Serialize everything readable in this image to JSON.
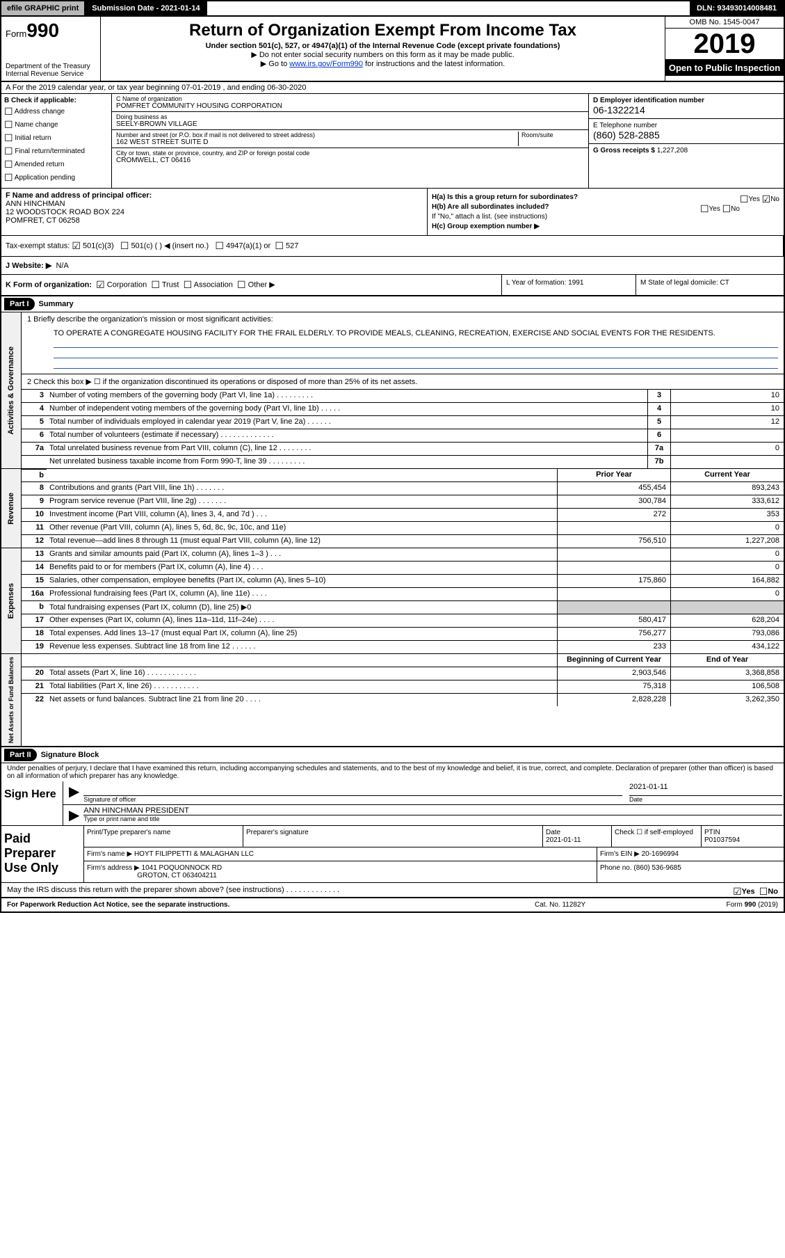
{
  "topbar": {
    "efile": "efile GRAPHIC print",
    "submission": "Submission Date - 2021-01-14",
    "dln": "DLN: 93493014008481"
  },
  "header": {
    "form_pre": "Form",
    "form_num": "990",
    "title": "Return of Organization Exempt From Income Tax",
    "sub1": "Under section 501(c), 527, or 4947(a)(1) of the Internal Revenue Code (except private foundations)",
    "sub2": "▶ Do not enter social security numbers on this form as it may be made public.",
    "sub3_pre": "▶ Go to ",
    "sub3_link": "www.irs.gov/Form990",
    "sub3_post": " for instructions and the latest information.",
    "dept": "Department of the Treasury\nInternal Revenue Service",
    "omb": "OMB No. 1545-0047",
    "year": "2019",
    "open": "Open to Public Inspection"
  },
  "rowA": "A For the 2019 calendar year, or tax year beginning 07-01-2019     , and ending 06-30-2020",
  "colB": {
    "lbl": "B Check if applicable:",
    "items": [
      "Address change",
      "Name change",
      "Initial return",
      "Final return/terminated",
      "Amended return",
      "Application pending"
    ]
  },
  "colC": {
    "name_lbl": "C Name of organization",
    "name": "POMFRET COMMUNITY HOUSING CORPORATION",
    "dba_lbl": "Doing business as",
    "dba": "SEELY-BROWN VILLAGE",
    "addr_lbl": "Number and street (or P.O. box if mail is not delivered to street address)",
    "addr": "162 WEST STREET SUITE D",
    "room_lbl": "Room/suite",
    "city_lbl": "City or town, state or province, country, and ZIP or foreign postal code",
    "city": "CROMWELL, CT  06416"
  },
  "colD": {
    "ein_lbl": "D Employer identification number",
    "ein": "06-1322214",
    "tel_lbl": "E Telephone number",
    "tel": "(860) 528-2885",
    "gross_lbl": "G Gross receipts $",
    "gross": "1,227,208"
  },
  "colF": {
    "lbl": "F  Name and address of principal officer:",
    "name": "ANN HINCHMAN",
    "addr1": "12 WOODSTOCK ROAD BOX 224",
    "addr2": "POMFRET, CT  06258"
  },
  "colH": {
    "ha": "H(a)  Is this a group return for subordinates?",
    "hb": "H(b)  Are all subordinates included?",
    "hb2": "If \"No,\" attach a list. (see instructions)",
    "hc": "H(c)  Group exemption number ▶",
    "yes": "Yes",
    "no": "No"
  },
  "rowI": {
    "lbl": "Tax-exempt status:",
    "opts": [
      "501(c)(3)",
      "501(c) (  ) ◀ (insert no.)",
      "4947(a)(1) or",
      "527"
    ]
  },
  "rowJ": {
    "lbl": "J  Website: ▶",
    "val": "N/A"
  },
  "rowK": {
    "lbl": "K Form of organization:",
    "opts": [
      "Corporation",
      "Trust",
      "Association",
      "Other ▶"
    ],
    "L": "L Year of formation: 1991",
    "M": "M State of legal domicile: CT"
  },
  "part1": {
    "hdr": "Part I",
    "title": "Summary",
    "q1": "1  Briefly describe the organization's mission or most significant activities:",
    "mission": "TO OPERATE A CONGREGATE HOUSING FACILITY FOR THE FRAIL ELDERLY. TO PROVIDE MEALS, CLEANING, RECREATION, EXERCISE AND SOCIAL EVENTS FOR THE RESIDENTS.",
    "q2": "2  Check this box ▶ ☐  if the organization discontinued its operations or disposed of more than 25% of its net assets.",
    "side_act": "Activities & Governance",
    "side_rev": "Revenue",
    "side_exp": "Expenses",
    "side_net": "Net Assets or Fund Balances",
    "rows_a": [
      {
        "n": "3",
        "d": "Number of voting members of the governing body (Part VI, line 1a)   .    .    .    .    .    .    .    .    .",
        "b": "3",
        "v": "10"
      },
      {
        "n": "4",
        "d": "Number of independent voting members of the governing body (Part VI, line 1b)   .    .    .    .    .",
        "b": "4",
        "v": "10"
      },
      {
        "n": "5",
        "d": "Total number of individuals employed in calendar year 2019 (Part V, line 2a)   .    .    .    .    .    .",
        "b": "5",
        "v": "12"
      },
      {
        "n": "6",
        "d": "Total number of volunteers (estimate if necessary)    .    .    .    .    .    .    .    .    .    .    .    .    .",
        "b": "6",
        "v": ""
      },
      {
        "n": "7a",
        "d": "Total unrelated business revenue from Part VIII, column (C), line 12   .    .    .    .    .    .    .    .",
        "b": "7a",
        "v": "0"
      },
      {
        "n": "",
        "d": "Net unrelated business taxable income from Form 990-T, line 39   .    .    .    .    .    .    .    .    .",
        "b": "7b",
        "v": ""
      }
    ],
    "hdr_b": {
      "py": "Prior Year",
      "cy": "Current Year"
    },
    "rows_rev": [
      {
        "n": "8",
        "d": "Contributions and grants (Part VIII, line 1h)    .    .    .    .    .    .    .",
        "py": "455,454",
        "cy": "893,243"
      },
      {
        "n": "9",
        "d": "Program service revenue (Part VIII, line 2g)    .    .    .    .    .    .    .",
        "py": "300,784",
        "cy": "333,612"
      },
      {
        "n": "10",
        "d": "Investment income (Part VIII, column (A), lines 3, 4, and 7d )    .    .    .",
        "py": "272",
        "cy": "353"
      },
      {
        "n": "11",
        "d": "Other revenue (Part VIII, column (A), lines 5, 6d, 8c, 9c, 10c, and 11e)",
        "py": "",
        "cy": "0"
      },
      {
        "n": "12",
        "d": "Total revenue—add lines 8 through 11 (must equal Part VIII, column (A), line 12)",
        "py": "756,510",
        "cy": "1,227,208"
      }
    ],
    "rows_exp": [
      {
        "n": "13",
        "d": "Grants and similar amounts paid (Part IX, column (A), lines 1–3 )   .    .    .",
        "py": "",
        "cy": "0"
      },
      {
        "n": "14",
        "d": "Benefits paid to or for members (Part IX, column (A), line 4)    .    .    .",
        "py": "",
        "cy": "0"
      },
      {
        "n": "15",
        "d": "Salaries, other compensation, employee benefits (Part IX, column (A), lines 5–10)",
        "py": "175,860",
        "cy": "164,882"
      },
      {
        "n": "16a",
        "d": "Professional fundraising fees (Part IX, column (A), line 11e)    .    .    .    .",
        "py": "",
        "cy": "0"
      },
      {
        "n": "b",
        "d": "Total fundraising expenses (Part IX, column (D), line 25) ▶0",
        "py": "grey",
        "cy": "grey"
      },
      {
        "n": "17",
        "d": "Other expenses (Part IX, column (A), lines 11a–11d, 11f–24e)   .    .    .    .",
        "py": "580,417",
        "cy": "628,204"
      },
      {
        "n": "18",
        "d": "Total expenses. Add lines 13–17 (must equal Part IX, column (A), line 25)",
        "py": "756,277",
        "cy": "793,086"
      },
      {
        "n": "19",
        "d": "Revenue less expenses. Subtract line 18 from line 12     .    .    .    .    .    .",
        "py": "233",
        "cy": "434,122"
      }
    ],
    "hdr_c": {
      "py": "Beginning of Current Year",
      "cy": "End of Year"
    },
    "rows_net": [
      {
        "n": "20",
        "d": "Total assets (Part X, line 16)   .    .    .    .    .    .    .    .    .    .    .    .",
        "py": "2,903,546",
        "cy": "3,368,858"
      },
      {
        "n": "21",
        "d": "Total liabilities (Part X, line 26)   .    .    .    .    .    .    .    .    .    .    .",
        "py": "75,318",
        "cy": "106,508"
      },
      {
        "n": "22",
        "d": "Net assets or fund balances. Subtract line 21 from line 20    .    .    .    .",
        "py": "2,828,228",
        "cy": "3,262,350"
      }
    ]
  },
  "part2": {
    "hdr": "Part II",
    "title": "Signature Block",
    "decl": "Under penalties of perjury, I declare that I have examined this return, including accompanying schedules and statements, and to the best of my knowledge and belief, it is true, correct, and complete. Declaration of preparer (other than officer) is based on all information of which preparer has any knowledge.",
    "sign_here": "Sign Here",
    "sig_lbl": "Signature of officer",
    "date_lbl": "Date",
    "date_val": "2021-01-11",
    "name_title": "ANN HINCHMAN  PRESIDENT",
    "name_title_lbl": "Type or print name and title",
    "paid": "Paid Preparer Use Only",
    "p_name_lbl": "Print/Type preparer's name",
    "p_sig_lbl": "Preparer's signature",
    "p_date_lbl": "Date",
    "p_date": "2021-01-11",
    "p_check": "Check ☐ if self-employed",
    "ptin_lbl": "PTIN",
    "ptin": "P01037594",
    "firm_name_lbl": "Firm's name    ▶",
    "firm_name": "HOYT FILIPPETTI & MALAGHAN LLC",
    "firm_ein": "Firm's EIN ▶ 20-1696994",
    "firm_addr_lbl": "Firm's address ▶",
    "firm_addr1": "1041 POQUONNOCK RD",
    "firm_addr2": "GROTON, CT  063404211",
    "firm_phone": "Phone no. (860) 536-9685",
    "discuss": "May the IRS discuss this return with the preparer shown above? (see instructions)    .    .    .    .    .    .    .    .    .    .    .    .    .",
    "yes": "Yes",
    "no": "No"
  },
  "footer": {
    "left": "For Paperwork Reduction Act Notice, see the separate instructions.",
    "mid": "Cat. No. 11282Y",
    "right": "Form 990 (2019)"
  },
  "colors": {
    "link": "#0033cc",
    "hrline": "#2b5aa0",
    "grey": "#d0d0d0"
  }
}
